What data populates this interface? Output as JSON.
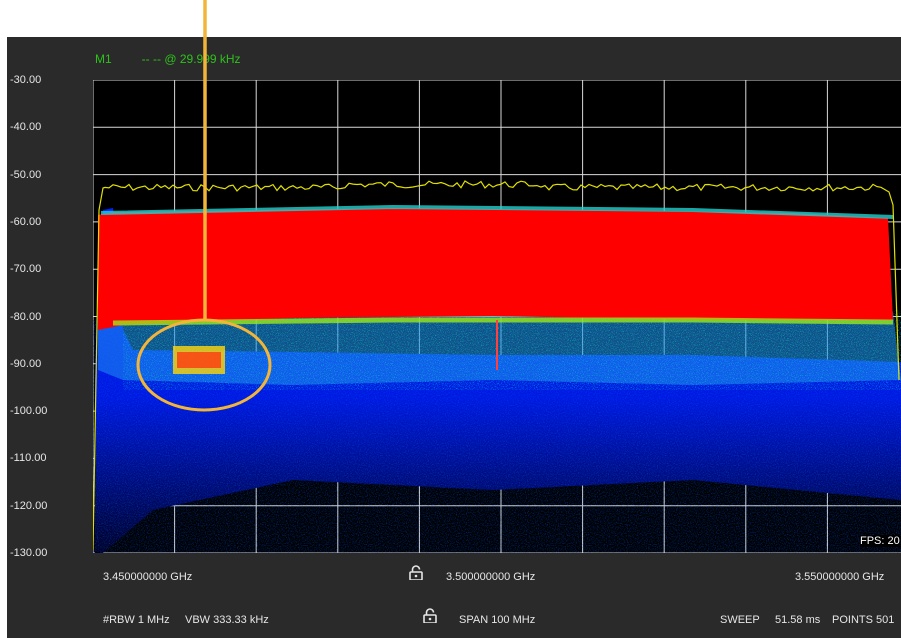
{
  "marker": {
    "label": "M1",
    "readout": "-- -- @ 29.999 kHz"
  },
  "y_axis": {
    "ticks": [
      "-30.00",
      "-40.00",
      "-50.00",
      "-60.00",
      "-70.00",
      "-80.00",
      "-90.00",
      "-100.00",
      "-110.00",
      "-120.00",
      "-130.00"
    ]
  },
  "x_axis": {
    "start": "3.450000000 GHz",
    "center": "3.500000000 GHz",
    "stop": "3.550000000 GHz"
  },
  "status": {
    "rbw": "#RBW 1 MHz",
    "vbw": "VBW 333.33 kHz",
    "span": "SPAN 100 MHz",
    "sweep_label": "SWEEP",
    "sweep_value": "51.58 ms",
    "points": "POINTS 501"
  },
  "fps": "FPS: 20",
  "colors": {
    "peak_trace": "#e0e000",
    "high_density": "#ff0000",
    "mid_density": "#00e060",
    "low_density": "#0020ff",
    "marker_text": "#2ec11b",
    "annotation": "#f2b53a"
  },
  "icons": [
    "lock-icon-center-frequency",
    "lock-icon-span"
  ]
}
